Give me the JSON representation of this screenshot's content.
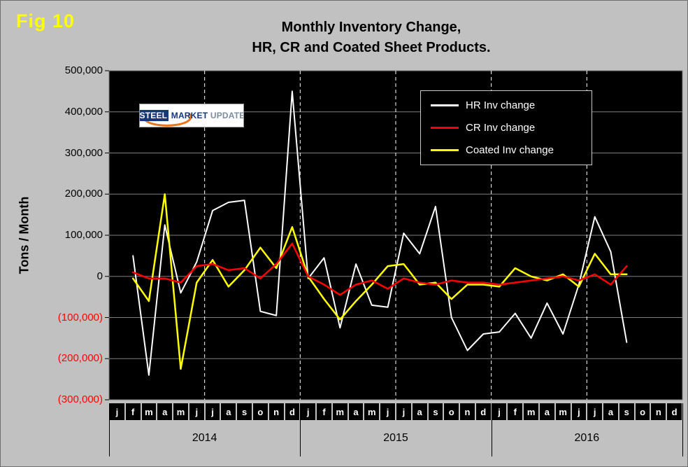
{
  "figure": {
    "label": "Fig 10"
  },
  "chart": {
    "ylabel": "Tons / Month"
  },
  "logo": {
    "text1": "STEEL",
    "text2": "MARKET",
    "text3": "UPDATE"
  },
  "chart_data": {
    "type": "line",
    "title": "Monthly Inventory Change, HR, CR and Coated Sheet Products.",
    "title_lines": [
      "Monthly Inventory Change,",
      "HR, CR and Coated Sheet  Products."
    ],
    "xlabel": "",
    "ylabel": "Tons / Month",
    "ylim": [
      -300000,
      500000
    ],
    "grid": {
      "horizontal": true,
      "h_step": 100000,
      "v_dashed_at_month_index": [
        6,
        12,
        18,
        24,
        30
      ]
    },
    "legend_position": "top-right",
    "x_months": [
      "j",
      "f",
      "m",
      "a",
      "m",
      "j",
      "j",
      "a",
      "s",
      "o",
      "n",
      "d",
      "j",
      "f",
      "m",
      "a",
      "m",
      "j",
      "j",
      "a",
      "s",
      "o",
      "n",
      "d",
      "j",
      "f",
      "m",
      "a",
      "m",
      "j",
      "j",
      "a",
      "s",
      "o",
      "n",
      "d"
    ],
    "x_years": [
      {
        "label": "2014",
        "months": 12
      },
      {
        "label": "2015",
        "months": 12
      },
      {
        "label": "2016",
        "months": 12
      }
    ],
    "y_ticks": [
      {
        "value": 500000,
        "label": "500,000",
        "color": "#000000"
      },
      {
        "value": 400000,
        "label": "400,000",
        "color": "#000000"
      },
      {
        "value": 300000,
        "label": "300,000",
        "color": "#000000"
      },
      {
        "value": 200000,
        "label": "200,000",
        "color": "#000000"
      },
      {
        "value": 100000,
        "label": "100,000",
        "color": "#000000"
      },
      {
        "value": 0,
        "label": "0",
        "color": "#000000"
      },
      {
        "value": -100000,
        "label": "(100,000)",
        "color": "#ff0000"
      },
      {
        "value": -200000,
        "label": "(200,000)",
        "color": "#ff0000"
      },
      {
        "value": -300000,
        "label": "(300,000)",
        "color": "#ff0000"
      }
    ],
    "series": [
      {
        "name": "HR Inv change",
        "color": "#ffffff",
        "values": [
          null,
          50000,
          -240000,
          125000,
          -40000,
          35000,
          160000,
          180000,
          185000,
          -85000,
          -95000,
          450000,
          -5000,
          45000,
          -125000,
          30000,
          -70000,
          -75000,
          105000,
          55000,
          170000,
          -100000,
          -180000,
          -140000,
          -135000,
          -90000,
          -150000,
          -65000,
          -140000,
          -20000,
          145000,
          60000,
          -160000,
          null,
          null,
          null
        ]
      },
      {
        "name": "CR Inv change",
        "color": "#ff0000",
        "values": [
          null,
          10000,
          -5000,
          -5000,
          -15000,
          25000,
          30000,
          15000,
          20000,
          -5000,
          30000,
          80000,
          0,
          -20000,
          -45000,
          -20000,
          -10000,
          -30000,
          -5000,
          -15000,
          -20000,
          -10000,
          -15000,
          -15000,
          -20000,
          -15000,
          -10000,
          -5000,
          0,
          -10000,
          5000,
          -20000,
          25000,
          null,
          null,
          null
        ]
      },
      {
        "name": "Coated Inv change",
        "color": "#ffff00",
        "values": [
          null,
          -5000,
          -60000,
          200000,
          -225000,
          -15000,
          40000,
          -25000,
          15000,
          70000,
          20000,
          120000,
          0,
          -55000,
          -105000,
          -60000,
          -20000,
          25000,
          30000,
          -20000,
          -15000,
          -55000,
          -20000,
          -20000,
          -25000,
          20000,
          0,
          -10000,
          5000,
          -25000,
          55000,
          5000,
          5000,
          null,
          null,
          null
        ]
      }
    ]
  }
}
